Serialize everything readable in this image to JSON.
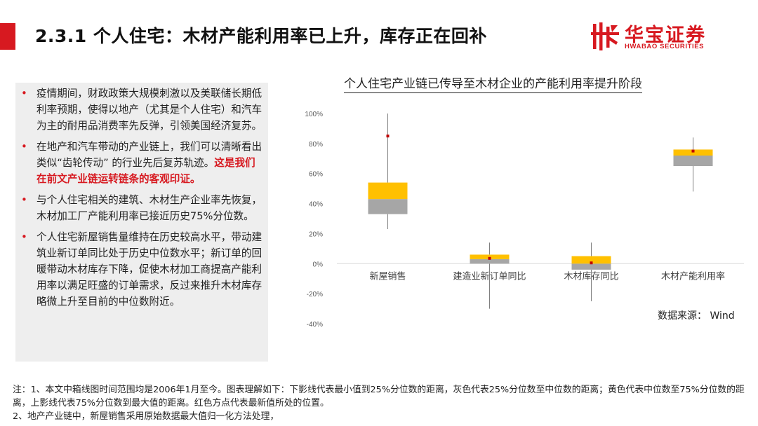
{
  "header": {
    "title": "2.3.1 个人住宅：木材产能利用率已上升，库存正在回补",
    "logo_cn": "华宝证券",
    "logo_en": "HWABAO SECURITIES",
    "accent_color": "#d71920"
  },
  "bullets": [
    {
      "text": "疫情期间，财政政策大规模刺激以及美联储长期低利率预期，使得以地产（尤其是个人住宅）和汽车为主的耐用品消费率先反弹，引领美国经济复苏。",
      "highlight": ""
    },
    {
      "text": "在地产和汽车带动的产业链上，我们可以清晰看出类似“齿轮传动” 的行业先后复苏轨迹。",
      "highlight": "这是我们在前文产业链运转链条的客观印证。"
    },
    {
      "text": "与个人住宅相关的建筑、木材生产企业率先恢复，木材加工厂产能利用率已接近历史75%分位数。",
      "highlight": ""
    },
    {
      "text": "个人住宅新屋销售量维持在历史较高水平，带动建筑业新订单同比处于历史中位数水平；新订单的回暖带动木材库存下降，促使木材加工商提高产能利用率以满足旺盛的订单需求，反过来推升木材库存略微上升至目前的中位数附近。",
      "highlight": ""
    }
  ],
  "chart_data": {
    "type": "boxplot",
    "title": "个人住宅产业链已传导至木材企业的产能利用率提升阶段",
    "categories": [
      "新屋销售",
      "建造业新订单同比",
      "木材库存同比",
      "木材产能利用率"
    ],
    "ylim": [
      -40,
      100
    ],
    "yticks": [
      -40,
      -20,
      0,
      20,
      40,
      60,
      80,
      100
    ],
    "ytick_labels": [
      "-40%",
      "-20%",
      "0%",
      "20%",
      "40%",
      "60%",
      "80%",
      "100%"
    ],
    "series": [
      {
        "name": "下影线",
        "min": [
          23,
          -30,
          -25,
          48
        ]
      },
      {
        "name": "灰色",
        "q1": [
          33,
          0,
          -4,
          65
        ],
        "median": [
          43,
          3,
          0,
          72
        ]
      },
      {
        "name": "黄色",
        "q3": [
          54,
          6,
          5,
          76
        ]
      },
      {
        "name": "上影线",
        "max": [
          100,
          14,
          14,
          84
        ]
      },
      {
        "name": "红色方点",
        "latest": [
          85,
          3.5,
          0.5,
          75
        ]
      }
    ],
    "colors": {
      "lower_box": "#a6a6a6",
      "upper_box": "#ffc000",
      "whisker": "#7f7f7f",
      "latest": "#c00000",
      "axis": "#d9d9d9"
    },
    "source": "数据来源： Wind"
  },
  "notes": [
    "注：1、本文中箱线图时间范围均是2006年1月至今。图表理解如下：下影线代表最小值到25%分位数的距离，灰色代表25%分位数至中位数的距离；黄色代表中位数至75%分位数的距离，上影线代表75%分位数到最大值的距离。红色方点代表最新值所处的位置。",
    "2、地产产业链中，新屋销售采用原始数据最大值归一化方法处理，"
  ]
}
